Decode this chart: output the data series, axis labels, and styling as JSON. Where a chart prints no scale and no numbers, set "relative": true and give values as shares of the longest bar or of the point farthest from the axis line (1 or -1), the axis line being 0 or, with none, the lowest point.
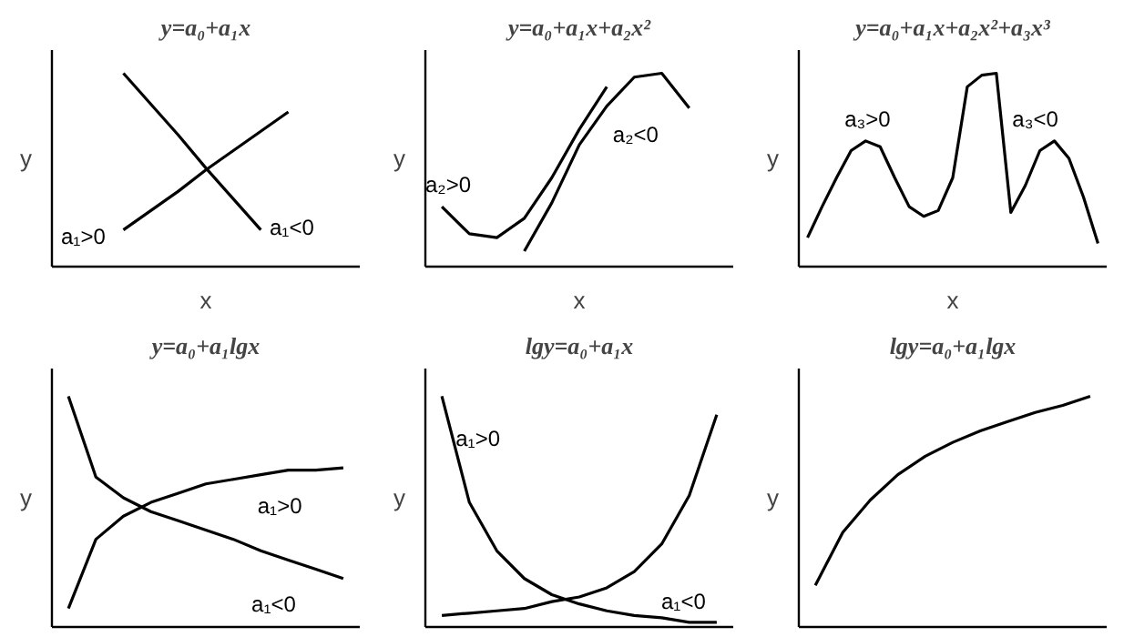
{
  "chart_data": [
    {
      "type": "line",
      "title": "y=a₀+a₁x",
      "xlabel": "x",
      "ylabel": "y",
      "relative": true,
      "categories": [
        null,
        null,
        null,
        null,
        null,
        null,
        null,
        null,
        null,
        null,
        null
      ],
      "series": [
        {
          "color": "#000000",
          "values": [
            null,
            null,
            0.19,
            0.29,
            0.39,
            0.5,
            0.6,
            0.7,
            0.8,
            null,
            null
          ]
        },
        {
          "color": "#000000",
          "values": [
            null,
            null,
            1.0,
            0.84,
            0.68,
            0.51,
            0.35,
            0.19,
            null,
            null,
            null
          ]
        }
      ],
      "annotations": [
        "a₁>0",
        "a₁<0"
      ]
    },
    {
      "type": "line",
      "title": "y=a₀+a₁x+a₂x²",
      "xlabel": "x",
      "ylabel": "y",
      "relative": true,
      "categories": [
        null,
        null,
        null,
        null,
        null,
        null,
        null,
        null,
        null,
        null,
        null
      ],
      "series": [
        {
          "color": "#000000",
          "values": [
            0.31,
            0.17,
            0.15,
            0.25,
            0.46,
            0.71,
            0.93,
            null,
            null,
            null,
            null
          ]
        },
        {
          "color": "#000000",
          "values": [
            null,
            null,
            null,
            0.08,
            0.33,
            0.63,
            0.83,
            0.98,
            1.0,
            0.82,
            null
          ]
        }
      ],
      "annotations": [
        "a₂>0",
        "a₂<0"
      ]
    },
    {
      "type": "line",
      "title": "y=a₀+a₁x+a₂x²+a₃x³",
      "xlabel": "x",
      "ylabel": "y",
      "relative": true,
      "categories": [
        null,
        null,
        null,
        null,
        null,
        null,
        null,
        null,
        null,
        null,
        null,
        null,
        null,
        null,
        null,
        null,
        null,
        null,
        null,
        null,
        null
      ],
      "series": [
        {
          "color": "#000000",
          "values": [
            0.15,
            0.31,
            0.46,
            0.6,
            0.65,
            0.62,
            0.46,
            0.31,
            0.26,
            0.29,
            0.46,
            0.93,
            0.99,
            1.0,
            0.28,
            0.42,
            0.6,
            0.65,
            0.56,
            0.36,
            0.12
          ]
        }
      ],
      "annotations": [
        "a₃>0",
        "a₃<0"
      ]
    },
    {
      "type": "line",
      "title": "y=a₀+a₁lgx",
      "ylabel": "y",
      "relative": true,
      "categories": [
        null,
        null,
        null,
        null,
        null,
        null,
        null,
        null,
        null,
        null,
        null
      ],
      "series": [
        {
          "color": "#000000",
          "values": [
            0.08,
            0.38,
            0.48,
            0.54,
            0.58,
            0.62,
            0.64,
            0.66,
            0.68,
            0.68,
            0.69
          ]
        },
        {
          "color": "#000000",
          "values": [
            1.0,
            0.65,
            0.56,
            0.5,
            0.46,
            0.42,
            0.38,
            0.33,
            0.29,
            0.25,
            0.21
          ]
        }
      ],
      "annotations": [
        "a₁>0",
        "a₁<0"
      ]
    },
    {
      "type": "line",
      "title": "lgy=a₀+a₁x",
      "ylabel": "y",
      "relative": true,
      "categories": [
        null,
        null,
        null,
        null,
        null,
        null,
        null,
        null,
        null,
        null,
        null
      ],
      "series": [
        {
          "color": "#000000",
          "values": [
            1.0,
            0.54,
            0.33,
            0.21,
            0.14,
            0.1,
            0.07,
            0.05,
            0.04,
            0.02,
            0.02
          ]
        },
        {
          "color": "#000000",
          "values": [
            0.05,
            0.06,
            0.07,
            0.08,
            0.11,
            0.13,
            0.17,
            0.24,
            0.36,
            0.57,
            0.92
          ]
        }
      ],
      "annotations": [
        "a₁>0",
        "a₁<0"
      ]
    },
    {
      "type": "line",
      "title": "lgy=a₀+a₁lgx",
      "ylabel": "y",
      "relative": true,
      "categories": [
        null,
        null,
        null,
        null,
        null,
        null,
        null,
        null,
        null,
        null,
        null
      ],
      "series": [
        {
          "color": "#000000",
          "values": [
            0.18,
            0.41,
            0.55,
            0.66,
            0.74,
            0.8,
            0.85,
            0.89,
            0.93,
            0.96,
            1.0
          ]
        }
      ]
    }
  ]
}
